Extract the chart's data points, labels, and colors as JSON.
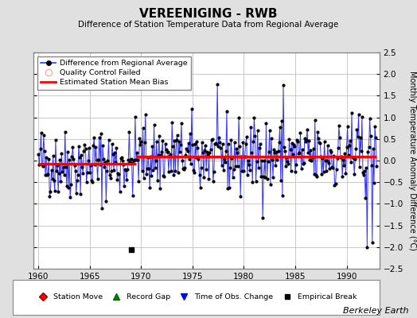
{
  "title": "VEREENIGING - RWB",
  "subtitle": "Difference of Station Temperature Data from Regional Average",
  "ylabel": "Monthly Temperature Anomaly Difference (°C)",
  "xlabel_note": "Berkeley Earth",
  "xlim": [
    1959.5,
    1993.2
  ],
  "ylim": [
    -2.5,
    2.5
  ],
  "yticks": [
    -2.5,
    -2,
    -1.5,
    -1,
    -0.5,
    0,
    0.5,
    1,
    1.5,
    2,
    2.5
  ],
  "xticks": [
    1960,
    1965,
    1970,
    1975,
    1980,
    1985,
    1990
  ],
  "mean_bias_before": -0.07,
  "mean_bias_after": 0.1,
  "bias_break_year": 1969.5,
  "empirical_break_x": 1969.0,
  "empirical_break_y": -2.05,
  "bg_color": "#e0e0e0",
  "plot_bg_color": "#ffffff",
  "line_color": "#3333ff",
  "marker_color": "#000000",
  "bias_color": "#ff0000",
  "grid_color": "#c0c0c0",
  "seed": 42
}
